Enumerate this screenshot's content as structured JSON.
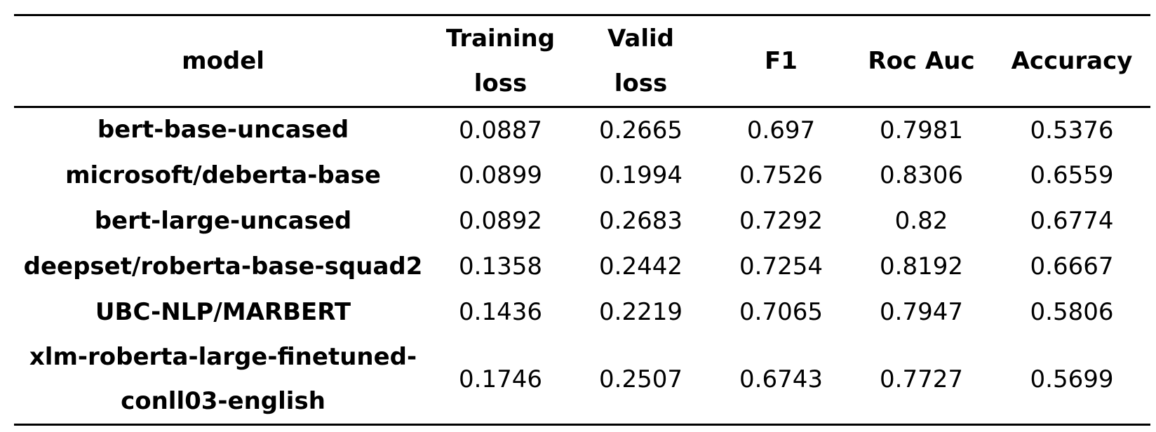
{
  "table": {
    "headers": {
      "model": "model",
      "training_loss": [
        "Training",
        "loss"
      ],
      "valid_loss": [
        "Valid",
        "loss"
      ],
      "f1": "F1",
      "roc_auc": "Roc Auc",
      "accuracy": "Accuracy"
    },
    "rows": [
      {
        "model": [
          "bert-base-uncased"
        ],
        "training_loss": "0.0887",
        "valid_loss": "0.2665",
        "f1": "0.697",
        "roc_auc": "0.7981",
        "accuracy": "0.5376"
      },
      {
        "model": [
          "microsoft/deberta-base"
        ],
        "training_loss": "0.0899",
        "valid_loss": "0.1994",
        "f1": "0.7526",
        "roc_auc": "0.8306",
        "accuracy": "0.6559"
      },
      {
        "model": [
          "bert-large-uncased"
        ],
        "training_loss": "0.0892",
        "valid_loss": "0.2683",
        "f1": "0.7292",
        "roc_auc": "0.82",
        "accuracy": "0.6774"
      },
      {
        "model": [
          "deepset/roberta-base-squad2"
        ],
        "training_loss": "0.1358",
        "valid_loss": "0.2442",
        "f1": "0.7254",
        "roc_auc": "0.8192",
        "accuracy": "0.6667"
      },
      {
        "model": [
          "UBC-NLP/MARBERT"
        ],
        "training_loss": "0.1436",
        "valid_loss": "0.2219",
        "f1": "0.7065",
        "roc_auc": "0.7947",
        "accuracy": "0.5806"
      },
      {
        "model": [
          "xlm-roberta-large-finetuned-",
          "conll03-english"
        ],
        "training_loss": "0.1746",
        "valid_loss": "0.2507",
        "f1": "0.6743",
        "roc_auc": "0.7727",
        "accuracy": "0.5699"
      }
    ]
  }
}
